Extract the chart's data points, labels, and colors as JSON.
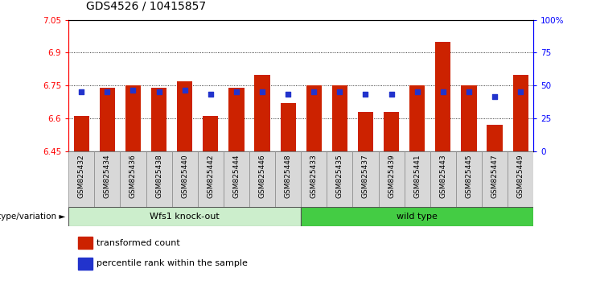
{
  "title": "GDS4526 / 10415857",
  "samples": [
    "GSM825432",
    "GSM825434",
    "GSM825436",
    "GSM825438",
    "GSM825440",
    "GSM825442",
    "GSM825444",
    "GSM825446",
    "GSM825448",
    "GSM825433",
    "GSM825435",
    "GSM825437",
    "GSM825439",
    "GSM825441",
    "GSM825443",
    "GSM825445",
    "GSM825447",
    "GSM825449"
  ],
  "bar_values": [
    6.61,
    6.74,
    6.75,
    6.74,
    6.77,
    6.61,
    6.74,
    6.8,
    6.67,
    6.75,
    6.75,
    6.63,
    6.63,
    6.75,
    6.95,
    6.75,
    6.57,
    6.8
  ],
  "blue_values": [
    6.72,
    6.72,
    6.73,
    6.72,
    6.73,
    6.71,
    6.72,
    6.72,
    6.71,
    6.72,
    6.72,
    6.71,
    6.71,
    6.72,
    6.72,
    6.72,
    6.7,
    6.72
  ],
  "ymin": 6.45,
  "ymax": 7.05,
  "yticks": [
    6.45,
    6.6,
    6.75,
    6.9,
    7.05
  ],
  "ytick_labels": [
    "6.45",
    "6.6",
    "6.75",
    "6.9",
    "7.05"
  ],
  "y2ticks": [
    0,
    25,
    50,
    75,
    100
  ],
  "y2tick_labels": [
    "0",
    "25",
    "50",
    "75",
    "100%"
  ],
  "bar_color": "#cc2200",
  "blue_color": "#2233cc",
  "group1_label": "Wfs1 knock-out",
  "group2_label": "wild type",
  "group1_bg": "#cceecc",
  "group2_bg": "#44cc44",
  "group1_count": 9,
  "group2_count": 9,
  "xlabel_left": "genotype/variation",
  "legend_red": "transformed count",
  "legend_blue": "percentile rank within the sample",
  "bar_width": 0.6,
  "dotted_grid": [
    6.6,
    6.75,
    6.9
  ],
  "sample_box_bg": "#d8d8d8",
  "title_fontsize": 10,
  "tick_fontsize": 7.5,
  "label_fontsize": 8
}
